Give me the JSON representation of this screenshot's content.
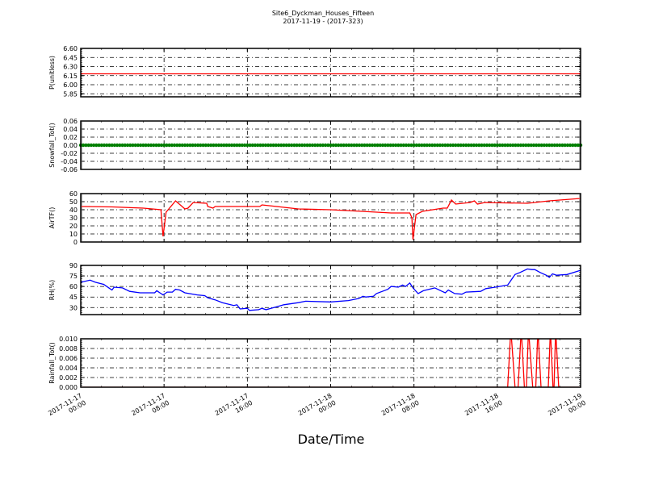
{
  "chart_data": {
    "type": "line",
    "title": "Site6_Dyckman_Houses_Fifteen",
    "subtitle": "2017-11-19 - (2017-323)",
    "xlabel": "Date/Time",
    "x_unit": "hours since 2017-11-17 00:00",
    "xlim": [
      0,
      48
    ],
    "x_ticks": [
      0,
      8,
      16,
      24,
      32,
      40,
      48
    ],
    "x_tick_labels": [
      [
        "2017-11-17",
        "00:00"
      ],
      [
        "2017-11-17",
        "08:00"
      ],
      [
        "2017-11-17",
        "16:00"
      ],
      [
        "2017-11-18",
        "00:00"
      ],
      [
        "2017-11-18",
        "08:00"
      ],
      [
        "2017-11-18",
        "16:00"
      ],
      [
        "2017-11-19",
        "00:00"
      ]
    ],
    "grid": true,
    "panels": [
      {
        "ylabel": "P(unitless)",
        "ylim": [
          5.8,
          6.6
        ],
        "color": "#ff0000",
        "markers": false,
        "y_tick_labels": [
          "5.85",
          "6.00",
          "6.15",
          "6.30",
          "6.45",
          "6.60"
        ],
        "points": [
          [
            0,
            6.18
          ],
          [
            48,
            6.18
          ]
        ]
      },
      {
        "ylabel": "Snowfall_Tot()",
        "ylim": [
          -0.06,
          0.06
        ],
        "color": "#007f00",
        "markers": true,
        "y_tick_labels": [
          "-0.06",
          "-0.04",
          "-0.02",
          "0.00",
          "0.02",
          "0.04",
          "0.06"
        ],
        "points": [
          [
            0,
            0
          ],
          [
            48,
            0
          ]
        ]
      },
      {
        "ylabel": "AirTF()",
        "ylim": [
          0,
          60
        ],
        "color": "#ff0000",
        "markers": false,
        "y_tick_labels": [
          "0",
          "10",
          "20",
          "30",
          "40",
          "50",
          "60"
        ],
        "points": [
          [
            0,
            44
          ],
          [
            3,
            43.5
          ],
          [
            6,
            42
          ],
          [
            7.7,
            40
          ],
          [
            7.9,
            7
          ],
          [
            8.2,
            37
          ],
          [
            9.1,
            51
          ],
          [
            10,
            41
          ],
          [
            10.3,
            42
          ],
          [
            10.8,
            49
          ],
          [
            12.1,
            48
          ],
          [
            12.2,
            44
          ],
          [
            12.7,
            42
          ],
          [
            12.9,
            44
          ],
          [
            13.6,
            44
          ],
          [
            16,
            44
          ],
          [
            17.2,
            44
          ],
          [
            17.4,
            46
          ],
          [
            20.9,
            41
          ],
          [
            24,
            40
          ],
          [
            27,
            38
          ],
          [
            28.4,
            37
          ],
          [
            29.8,
            36
          ],
          [
            31.6,
            36
          ],
          [
            31.8,
            30
          ],
          [
            31.9,
            3
          ],
          [
            32.2,
            34
          ],
          [
            32.8,
            38
          ],
          [
            34.3,
            41
          ],
          [
            34.8,
            42
          ],
          [
            35.2,
            42
          ],
          [
            35.6,
            52
          ],
          [
            36,
            47
          ],
          [
            37.4,
            49
          ],
          [
            37.8,
            51
          ],
          [
            38.1,
            47
          ],
          [
            38.8,
            49
          ],
          [
            42.9,
            48
          ],
          [
            45,
            51
          ],
          [
            48,
            54
          ]
        ]
      },
      {
        "ylabel": "RH(%)",
        "ylim": [
          20,
          90
        ],
        "color": "#0000ff",
        "markers": false,
        "y_tick_labels": [
          "30",
          "45",
          "60",
          "75",
          "90"
        ],
        "points": [
          [
            0,
            66
          ],
          [
            0.9,
            69
          ],
          [
            1.4,
            66
          ],
          [
            2.2,
            63
          ],
          [
            2.8,
            57
          ],
          [
            3,
            55
          ],
          [
            3.2,
            59
          ],
          [
            4,
            58
          ],
          [
            4.7,
            53
          ],
          [
            5.7,
            51
          ],
          [
            7.1,
            51
          ],
          [
            7.3,
            54
          ],
          [
            7.6,
            51
          ],
          [
            7.9,
            48
          ],
          [
            8.3,
            52
          ],
          [
            8.8,
            52
          ],
          [
            9.1,
            56
          ],
          [
            9.5,
            55
          ],
          [
            10,
            51
          ],
          [
            11.2,
            48
          ],
          [
            11.9,
            47
          ],
          [
            12.2,
            44
          ],
          [
            12.9,
            41
          ],
          [
            13.6,
            37
          ],
          [
            14.7,
            33
          ],
          [
            15,
            34
          ],
          [
            15.3,
            28
          ],
          [
            16,
            29
          ],
          [
            16.2,
            26
          ],
          [
            17.1,
            27
          ],
          [
            17.4,
            29
          ],
          [
            17.8,
            27
          ],
          [
            18.8,
            31
          ],
          [
            19.5,
            34
          ],
          [
            20.9,
            37
          ],
          [
            21.6,
            39
          ],
          [
            24,
            38
          ],
          [
            25.7,
            40
          ],
          [
            26.7,
            43
          ],
          [
            27.1,
            46
          ],
          [
            27.4,
            45
          ],
          [
            28.1,
            46
          ],
          [
            28.4,
            50
          ],
          [
            29.5,
            56
          ],
          [
            29.8,
            60
          ],
          [
            30.5,
            59
          ],
          [
            30.9,
            62
          ],
          [
            31.2,
            60
          ],
          [
            31.6,
            65
          ],
          [
            31.9,
            58
          ],
          [
            32.4,
            50
          ],
          [
            32.9,
            54
          ],
          [
            34,
            58
          ],
          [
            34.7,
            53
          ],
          [
            35,
            51
          ],
          [
            35.3,
            55
          ],
          [
            35.9,
            50
          ],
          [
            36.6,
            49
          ],
          [
            37,
            52
          ],
          [
            38.4,
            53
          ],
          [
            38.9,
            57
          ],
          [
            39.8,
            59
          ],
          [
            41,
            62
          ],
          [
            41.7,
            77
          ],
          [
            42.2,
            80
          ],
          [
            42.9,
            85
          ],
          [
            43.3,
            84
          ],
          [
            43.6,
            84
          ],
          [
            44.1,
            80
          ],
          [
            44.7,
            76
          ],
          [
            45,
            73
          ],
          [
            45.3,
            78
          ],
          [
            45.7,
            76
          ],
          [
            46.7,
            77
          ],
          [
            48,
            83
          ]
        ]
      },
      {
        "ylabel": "Rainfall_Tot()",
        "ylim": [
          0,
          0.01
        ],
        "color": "#ff0000",
        "markers": false,
        "y_tick_labels": [
          "0.000",
          "0.002",
          "0.004",
          "0.006",
          "0.008",
          "0.010"
        ],
        "points": [
          [
            0,
            0
          ],
          [
            41.0,
            0
          ],
          [
            41.3,
            0.012
          ],
          [
            41.7,
            0
          ],
          [
            42.0,
            0
          ],
          [
            42.3,
            0.012
          ],
          [
            42.6,
            0
          ],
          [
            42.8,
            0
          ],
          [
            43.0,
            0.012
          ],
          [
            43.4,
            0
          ],
          [
            43.7,
            0
          ],
          [
            43.9,
            0.012
          ],
          [
            44.2,
            0
          ],
          [
            44.9,
            0
          ],
          [
            45.1,
            0.012
          ],
          [
            45.35,
            0
          ],
          [
            45.45,
            0
          ],
          [
            45.6,
            0.012
          ],
          [
            45.9,
            0
          ],
          [
            48,
            0
          ]
        ]
      }
    ]
  }
}
